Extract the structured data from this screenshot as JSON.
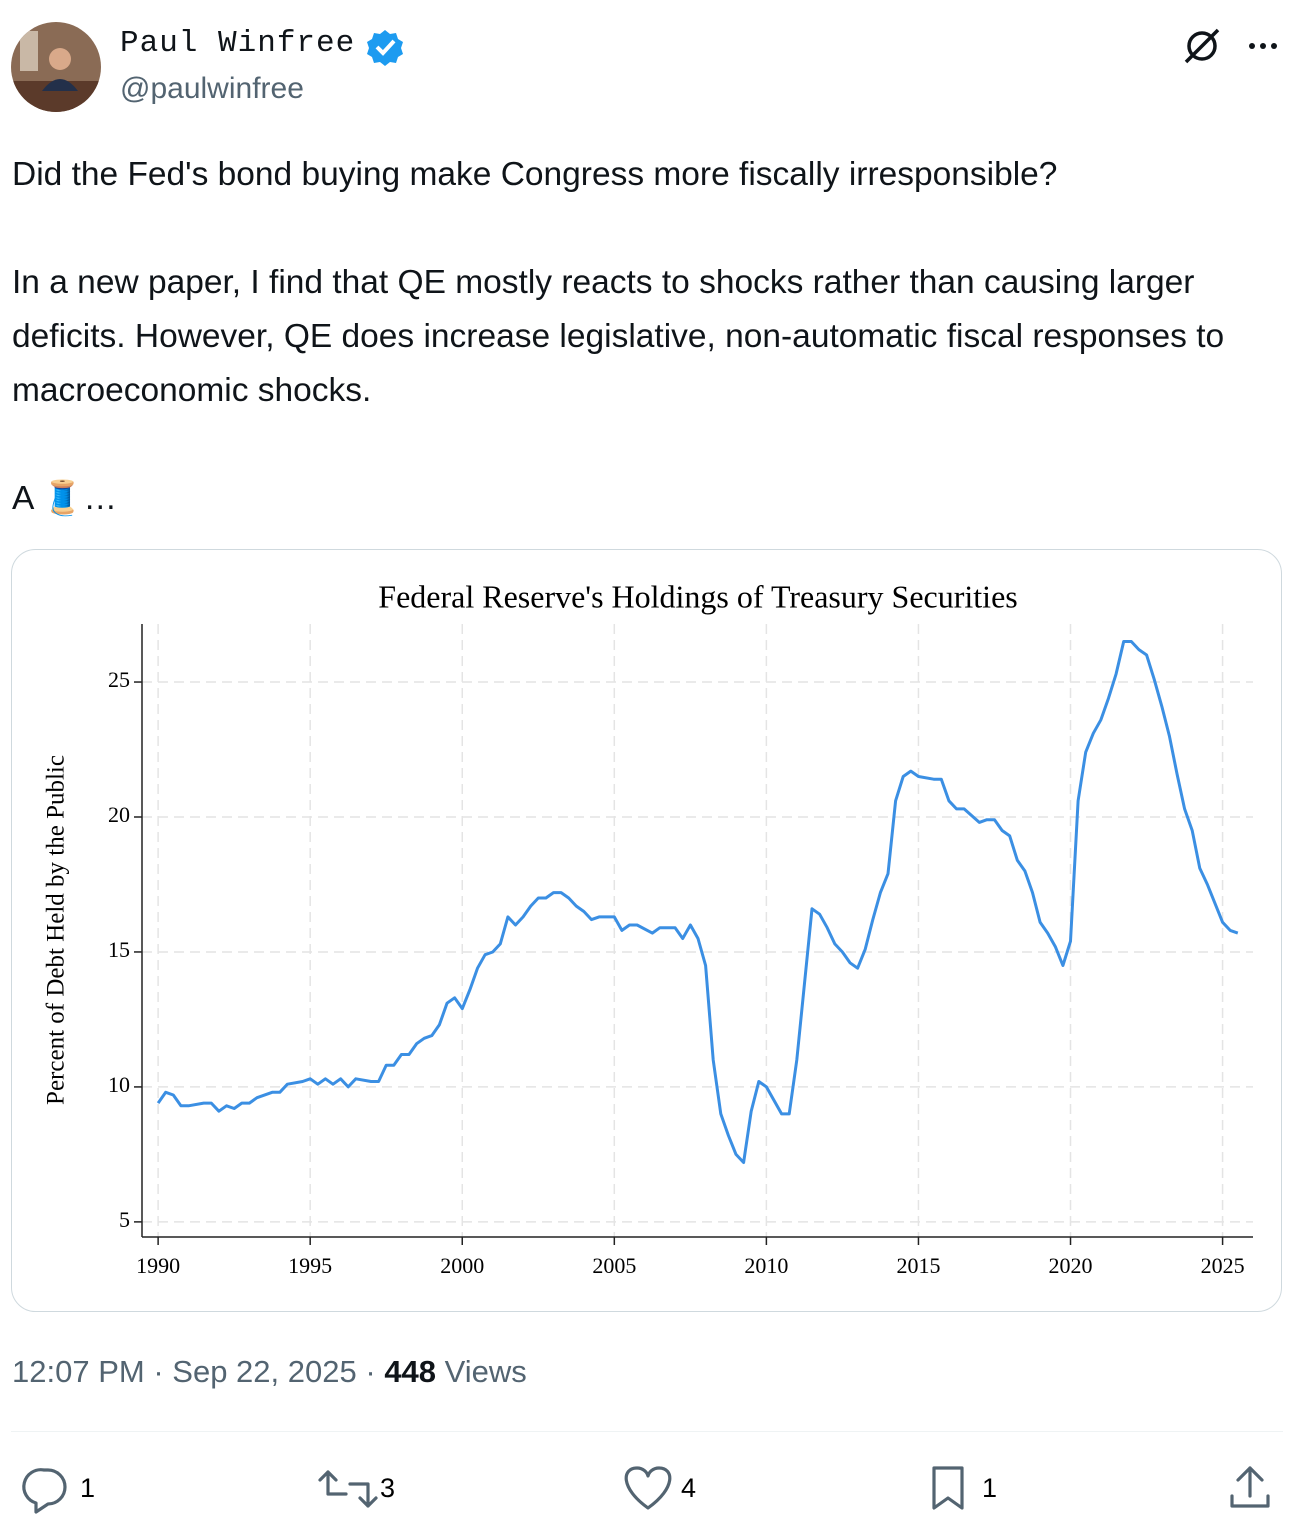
{
  "author": {
    "name": "Paul Winfree",
    "handle": "@paulwinfree"
  },
  "text": [
    "Did the Fed's bond buying make Congress more fiscally irresponsible?",
    "In a new paper, I find that QE mostly reacts to shocks rather than causing larger deficits. However, QE does increase legislative, non-automatic fiscal responses to macroeconomic shocks.",
    "A 🧵…"
  ],
  "chart_data": {
    "type": "line",
    "title": "Federal Reserve's Holdings of Treasury Securities",
    "y_label": "Percent of Debt Held by the Public",
    "color": "#3b8fe3",
    "grid": true,
    "x": [
      1990,
      1990.25,
      1990.5,
      1990.75,
      1991,
      1991.5,
      1991.75,
      1992,
      1992.25,
      1992.5,
      1992.75,
      1993,
      1993.25,
      1993.75,
      1994,
      1994.25,
      1994.75,
      1995,
      1995.25,
      1995.5,
      1995.75,
      1996,
      1996.25,
      1996.5,
      1997,
      1997.25,
      1997.5,
      1997.75,
      1998,
      1998.25,
      1998.5,
      1998.75,
      1999,
      1999.25,
      1999.5,
      1999.75,
      2000,
      2000.25,
      2000.5,
      2000.75,
      2001,
      2001.25,
      2001.5,
      2001.75,
      2002,
      2002.25,
      2002.5,
      2002.75,
      2003,
      2003.25,
      2003.5,
      2003.75,
      2004,
      2004.25,
      2004.5,
      2005,
      2005.25,
      2005.5,
      2005.75,
      2006.25,
      2006.5,
      2006.75,
      2007,
      2007.25,
      2007.5,
      2007.75,
      2008,
      2008.25,
      2008.5,
      2008.75,
      2009,
      2009.25,
      2009.5,
      2009.75,
      2010,
      2010.25,
      2010.5,
      2010.75,
      2011,
      2011.25,
      2011.5,
      2011.75,
      2012,
      2012.25,
      2012.5,
      2012.75,
      2013,
      2013.25,
      2013.5,
      2013.75,
      2014,
      2014.25,
      2014.5,
      2014.75,
      2015,
      2015.5,
      2015.75,
      2016,
      2016.25,
      2016.5,
      2017,
      2017.25,
      2017.5,
      2017.75,
      2018,
      2018.25,
      2018.5,
      2018.75,
      2019,
      2019.25,
      2019.5,
      2019.75,
      2020,
      2020.25,
      2020.5,
      2020.75,
      2021,
      2021.25,
      2021.5,
      2021.75,
      2022,
      2022.25,
      2022.5,
      2022.75,
      2023,
      2023.25,
      2023.5,
      2023.75,
      2024,
      2024.25,
      2024.5,
      2024.75,
      2025,
      2025.25,
      2025.5
    ],
    "values": [
      9.4,
      9.8,
      9.7,
      9.3,
      9.3,
      9.4,
      9.4,
      9.1,
      9.3,
      9.2,
      9.4,
      9.4,
      9.6,
      9.8,
      9.8,
      10.1,
      10.2,
      10.3,
      10.1,
      10.3,
      10.1,
      10.3,
      10.0,
      10.3,
      10.2,
      10.2,
      10.8,
      10.8,
      11.2,
      11.2,
      11.6,
      11.8,
      11.9,
      12.3,
      13.1,
      13.3,
      12.9,
      13.6,
      14.4,
      14.9,
      15.0,
      15.3,
      16.3,
      16.0,
      16.3,
      16.7,
      17.0,
      17.0,
      17.2,
      17.2,
      17.0,
      16.7,
      16.5,
      16.2,
      16.3,
      16.3,
      15.8,
      16.0,
      16.0,
      15.7,
      15.9,
      15.9,
      15.9,
      15.5,
      16.0,
      15.5,
      14.5,
      11.0,
      9.0,
      8.2,
      7.5,
      7.2,
      9.1,
      10.2,
      10.0,
      9.5,
      9.0,
      9.0,
      11.0,
      13.8,
      16.6,
      16.4,
      15.9,
      15.3,
      15.0,
      14.6,
      14.4,
      15.1,
      16.2,
      17.2,
      17.9,
      20.6,
      21.5,
      21.7,
      21.5,
      21.4,
      21.4,
      20.6,
      20.3,
      20.3,
      19.8,
      19.9,
      19.9,
      19.5,
      19.3,
      18.4,
      18.0,
      17.2,
      16.1,
      15.7,
      15.2,
      14.5,
      15.4,
      20.6,
      22.4,
      23.1,
      23.6,
      24.4,
      25.3,
      26.5,
      26.5,
      26.2,
      26.0,
      25.1,
      24.1,
      23.0,
      21.6,
      20.3,
      19.5,
      18.1,
      17.5,
      16.8,
      16.1,
      15.8,
      15.7
    ],
    "xlim": [
      1989.47,
      2026.0
    ],
    "ylim": [
      4.44,
      27.15
    ],
    "xticks": [
      1990,
      1995,
      2000,
      2005,
      2010,
      2015,
      2020,
      2025
    ],
    "yticks": [
      5,
      10,
      15,
      20,
      25
    ]
  },
  "meta": {
    "time": "12:07 PM",
    "separator": "·",
    "date": "Sep 22, 2025",
    "views": 448,
    "views_label": "Views"
  },
  "actions": {
    "replies": 1,
    "reposts": 3,
    "likes": 4,
    "bookmarks": 1
  }
}
